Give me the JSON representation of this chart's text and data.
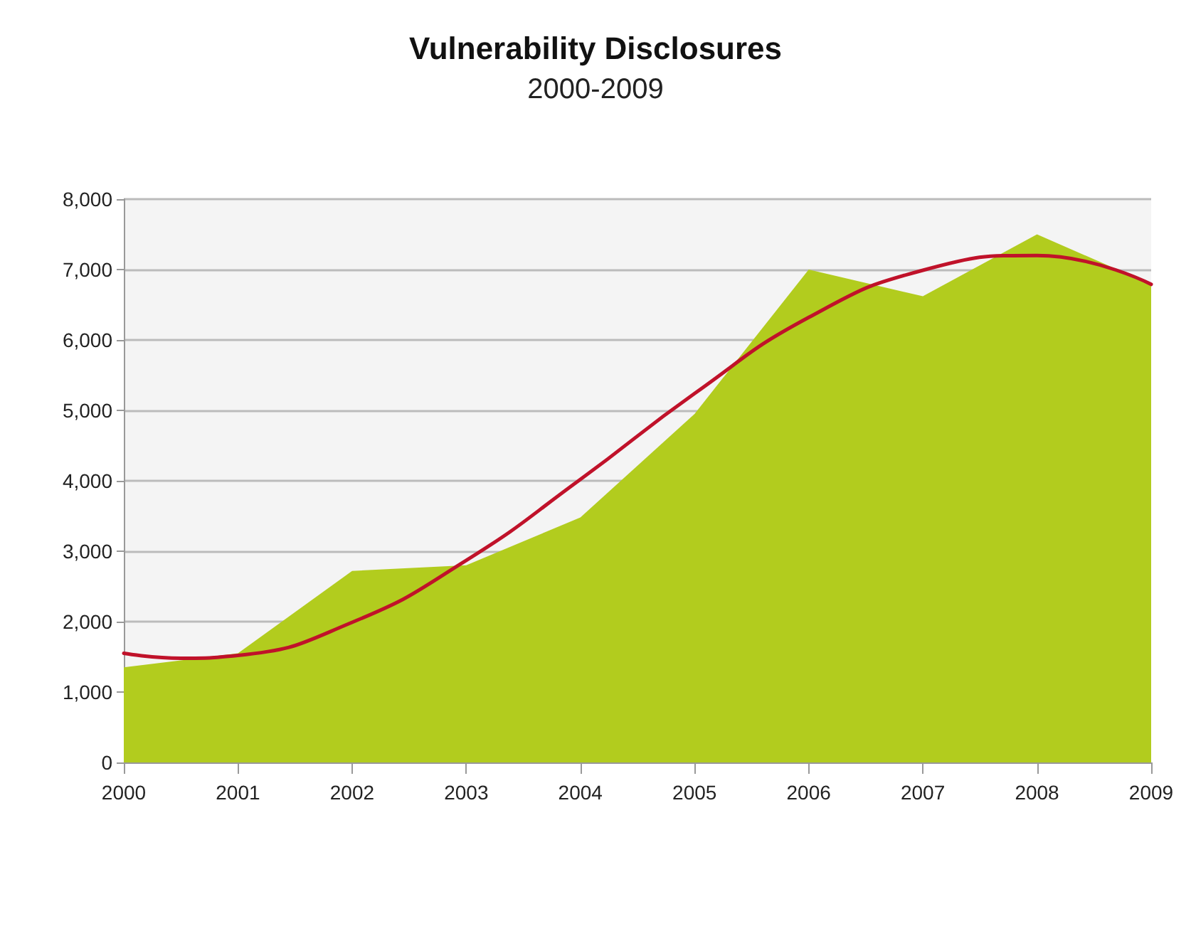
{
  "chart_data": {
    "type": "area",
    "title": "Vulnerability Disclosures",
    "subtitle": "2000-2009",
    "x": [
      2000,
      2001,
      2002,
      2003,
      2004,
      2005,
      2006,
      2007,
      2008,
      2009
    ],
    "series": [
      {
        "type": "area",
        "color": "#b2cc1e",
        "values": [
          1350,
          1550,
          2720,
          2800,
          3480,
          4950,
          7000,
          6620,
          7500,
          6790
        ]
      },
      {
        "type": "line",
        "color": "#c0122a",
        "x": [
          2000,
          2000.5,
          2001,
          2002,
          2003,
          2004,
          2005,
          2006,
          2007,
          2008,
          2009
        ],
        "values": [
          1550,
          1480,
          1520,
          1990,
          2870,
          4020,
          5240,
          6320,
          6990,
          7200,
          6790
        ]
      }
    ],
    "xlim": [
      2000,
      2009
    ],
    "xticks": [
      2000,
      2001,
      2002,
      2003,
      2004,
      2005,
      2006,
      2007,
      2008,
      2009
    ],
    "ylim": [
      0,
      8000
    ],
    "yticks": [
      {
        "value": 0,
        "label": "0"
      },
      {
        "value": 1000,
        "label": "1,000"
      },
      {
        "value": 2000,
        "label": "2,000"
      },
      {
        "value": 3000,
        "label": "3,000"
      },
      {
        "value": 4000,
        "label": "4,000"
      },
      {
        "value": 5000,
        "label": "5,000"
      },
      {
        "value": 6000,
        "label": "6,000"
      },
      {
        "value": 7000,
        "label": "7,000"
      },
      {
        "value": 8000,
        "label": "8,000"
      }
    ],
    "grid": "y",
    "marker": "none",
    "line_style": "solid"
  }
}
